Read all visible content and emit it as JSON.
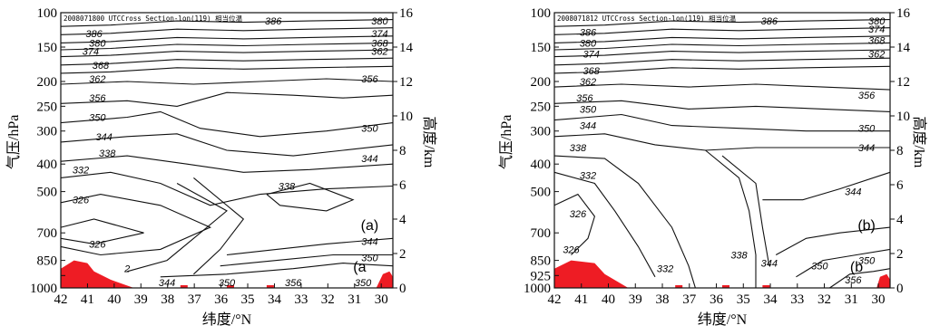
{
  "panels": [
    {
      "id": "a",
      "header": "2008071800 UTCCross Section-lon(119) 相当位温",
      "label": "(a)",
      "label2": "(a",
      "contour_labels": [
        {
          "v": "386",
          "p": [
            0.64,
            0.03
          ]
        },
        {
          "v": "380",
          "p": [
            0.96,
            0.03
          ]
        },
        {
          "v": "386",
          "p": [
            0.1,
            0.075
          ]
        },
        {
          "v": "374",
          "p": [
            0.96,
            0.075
          ]
        },
        {
          "v": "380",
          "p": [
            0.11,
            0.11
          ]
        },
        {
          "v": "368",
          "p": [
            0.96,
            0.11
          ]
        },
        {
          "v": "374",
          "p": [
            0.09,
            0.14
          ]
        },
        {
          "v": "362",
          "p": [
            0.96,
            0.14
          ]
        },
        {
          "v": "368",
          "p": [
            0.12,
            0.19
          ]
        },
        {
          "v": "362",
          "p": [
            0.11,
            0.24
          ]
        },
        {
          "v": "356",
          "p": [
            0.93,
            0.24
          ]
        },
        {
          "v": "356",
          "p": [
            0.11,
            0.31
          ]
        },
        {
          "v": "350",
          "p": [
            0.11,
            0.38
          ]
        },
        {
          "v": "350",
          "p": [
            0.93,
            0.42
          ]
        },
        {
          "v": "344",
          "p": [
            0.13,
            0.45
          ]
        },
        {
          "v": "338",
          "p": [
            0.14,
            0.51
          ]
        },
        {
          "v": "344",
          "p": [
            0.93,
            0.53
          ]
        },
        {
          "v": "332",
          "p": [
            0.06,
            0.57
          ]
        },
        {
          "v": "338",
          "p": [
            0.68,
            0.63
          ]
        },
        {
          "v": "326",
          "p": [
            0.06,
            0.68
          ]
        },
        {
          "v": "326",
          "p": [
            0.11,
            0.84
          ]
        },
        {
          "v": "344",
          "p": [
            0.93,
            0.83
          ]
        },
        {
          "v": "350",
          "p": [
            0.93,
            0.89
          ]
        },
        {
          "v": "2",
          "p": [
            0.2,
            0.93
          ]
        },
        {
          "v": "344",
          "p": [
            0.32,
            0.98
          ]
        },
        {
          "v": "350",
          "p": [
            0.5,
            0.98
          ]
        },
        {
          "v": "356",
          "p": [
            0.7,
            0.98
          ]
        },
        {
          "v": "350",
          "p": [
            0.91,
            0.98
          ]
        }
      ]
    },
    {
      "id": "b",
      "header": "2008071812 UTCCross Section-lon(119) 相当位温",
      "label": "(b)",
      "label2": "(b",
      "contour_labels": [
        {
          "v": "386",
          "p": [
            0.64,
            0.03
          ]
        },
        {
          "v": "380",
          "p": [
            0.96,
            0.03
          ]
        },
        {
          "v": "386",
          "p": [
            0.1,
            0.07
          ]
        },
        {
          "v": "374",
          "p": [
            0.96,
            0.06
          ]
        },
        {
          "v": "380",
          "p": [
            0.1,
            0.11
          ]
        },
        {
          "v": "368",
          "p": [
            0.96,
            0.1
          ]
        },
        {
          "v": "374",
          "p": [
            0.11,
            0.15
          ]
        },
        {
          "v": "362",
          "p": [
            0.96,
            0.15
          ]
        },
        {
          "v": "368",
          "p": [
            0.11,
            0.21
          ]
        },
        {
          "v": "362",
          "p": [
            0.1,
            0.25
          ]
        },
        {
          "v": "356",
          "p": [
            0.09,
            0.31
          ]
        },
        {
          "v": "356",
          "p": [
            0.93,
            0.3
          ]
        },
        {
          "v": "350",
          "p": [
            0.1,
            0.35
          ]
        },
        {
          "v": "344",
          "p": [
            0.1,
            0.41
          ]
        },
        {
          "v": "350",
          "p": [
            0.93,
            0.42
          ]
        },
        {
          "v": "344",
          "p": [
            0.93,
            0.49
          ]
        },
        {
          "v": "338",
          "p": [
            0.07,
            0.49
          ]
        },
        {
          "v": "332",
          "p": [
            0.1,
            0.59
          ]
        },
        {
          "v": "344",
          "p": [
            0.89,
            0.65
          ]
        },
        {
          "v": "326",
          "p": [
            0.07,
            0.73
          ]
        },
        {
          "v": "326",
          "p": [
            0.05,
            0.86
          ]
        },
        {
          "v": "332",
          "p": [
            0.33,
            0.93
          ]
        },
        {
          "v": "338",
          "p": [
            0.55,
            0.88
          ]
        },
        {
          "v": "344",
          "p": [
            0.64,
            0.91
          ]
        },
        {
          "v": "350",
          "p": [
            0.79,
            0.92
          ]
        },
        {
          "v": "350",
          "p": [
            0.93,
            0.9
          ]
        },
        {
          "v": "356",
          "p": [
            0.89,
            0.97
          ]
        }
      ]
    }
  ],
  "axes": {
    "left_label": "气压/hPa",
    "right_label": "高度/km",
    "x_label": "纬度/°N",
    "pressure_ticks": [
      "100",
      "150",
      "200",
      "250",
      "300",
      "400",
      "500",
      "700",
      "850",
      "925",
      "1000"
    ],
    "height_ticks": [
      "16",
      "14",
      "12",
      "10",
      "8",
      "6",
      "4",
      "2",
      "0"
    ],
    "lat_ticks": [
      "42",
      "41",
      "40",
      "39",
      "38",
      "37",
      "36",
      "35",
      "34",
      "33",
      "32",
      "31",
      "30"
    ]
  },
  "colors": {
    "terrain": "#ee1c24",
    "lines": "#111111"
  }
}
